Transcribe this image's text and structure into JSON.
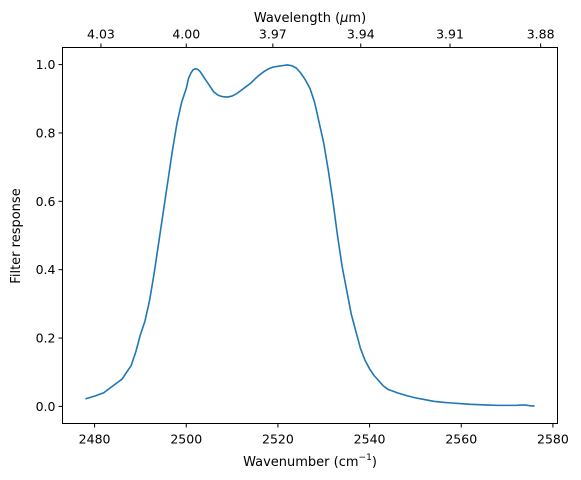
{
  "chart_data": {
    "type": "line",
    "xlabel": "Wavenumber (cm$^{-1}$)",
    "ylabel": "Filter response",
    "top_xlabel": "Wavelength ($\\mu$m)",
    "xlim": [
      2473,
      2581
    ],
    "ylim": [
      -0.05,
      1.05
    ],
    "bottom_ticks": [
      2480,
      2500,
      2520,
      2540,
      2560,
      2580
    ],
    "y_ticks": [
      0.0,
      0.2,
      0.4,
      0.6,
      0.8,
      1.0
    ],
    "top_ticks": [
      4.03,
      4.0,
      3.97,
      3.94,
      3.91,
      3.88
    ],
    "grid": false,
    "line_color": "#1f77b4",
    "series": [
      {
        "x": [
          2478,
          2480,
          2482,
          2484,
          2486,
          2488,
          2489,
          2490,
          2491,
          2492,
          2493,
          2494,
          2495,
          2496,
          2497,
          2498,
          2499,
          2500,
          2500.5,
          2501,
          2501.5,
          2502,
          2502.5,
          2503,
          2503.5,
          2504,
          2505,
          2506,
          2507,
          2508,
          2509,
          2510,
          2511,
          2512,
          2513,
          2514,
          2515,
          2516,
          2517,
          2518,
          2519,
          2520,
          2521,
          2522,
          2523,
          2524,
          2525,
          2526,
          2527,
          2528,
          2529,
          2530,
          2531,
          2532,
          2533,
          2534,
          2535,
          2536,
          2537,
          2538,
          2539,
          2540,
          2541,
          2542,
          2543,
          2544,
          2545,
          2546,
          2548,
          2550,
          2552,
          2554,
          2556,
          2558,
          2560,
          2562,
          2564,
          2566,
          2568,
          2570,
          2572,
          2573,
          2574,
          2575,
          2576
        ],
        "y": [
          0.022,
          0.03,
          0.04,
          0.06,
          0.08,
          0.12,
          0.16,
          0.21,
          0.25,
          0.31,
          0.39,
          0.48,
          0.57,
          0.66,
          0.75,
          0.83,
          0.89,
          0.93,
          0.96,
          0.975,
          0.985,
          0.988,
          0.986,
          0.98,
          0.97,
          0.96,
          0.94,
          0.92,
          0.91,
          0.906,
          0.905,
          0.908,
          0.915,
          0.925,
          0.935,
          0.945,
          0.958,
          0.97,
          0.98,
          0.988,
          0.993,
          0.995,
          0.997,
          0.999,
          0.997,
          0.99,
          0.975,
          0.955,
          0.93,
          0.89,
          0.83,
          0.77,
          0.69,
          0.6,
          0.5,
          0.41,
          0.34,
          0.27,
          0.22,
          0.17,
          0.135,
          0.11,
          0.09,
          0.075,
          0.06,
          0.05,
          0.045,
          0.04,
          0.032,
          0.025,
          0.02,
          0.015,
          0.012,
          0.01,
          0.008,
          0.006,
          0.005,
          0.004,
          0.003,
          0.003,
          0.003,
          0.004,
          0.004,
          0.002,
          0.001
        ]
      }
    ]
  }
}
